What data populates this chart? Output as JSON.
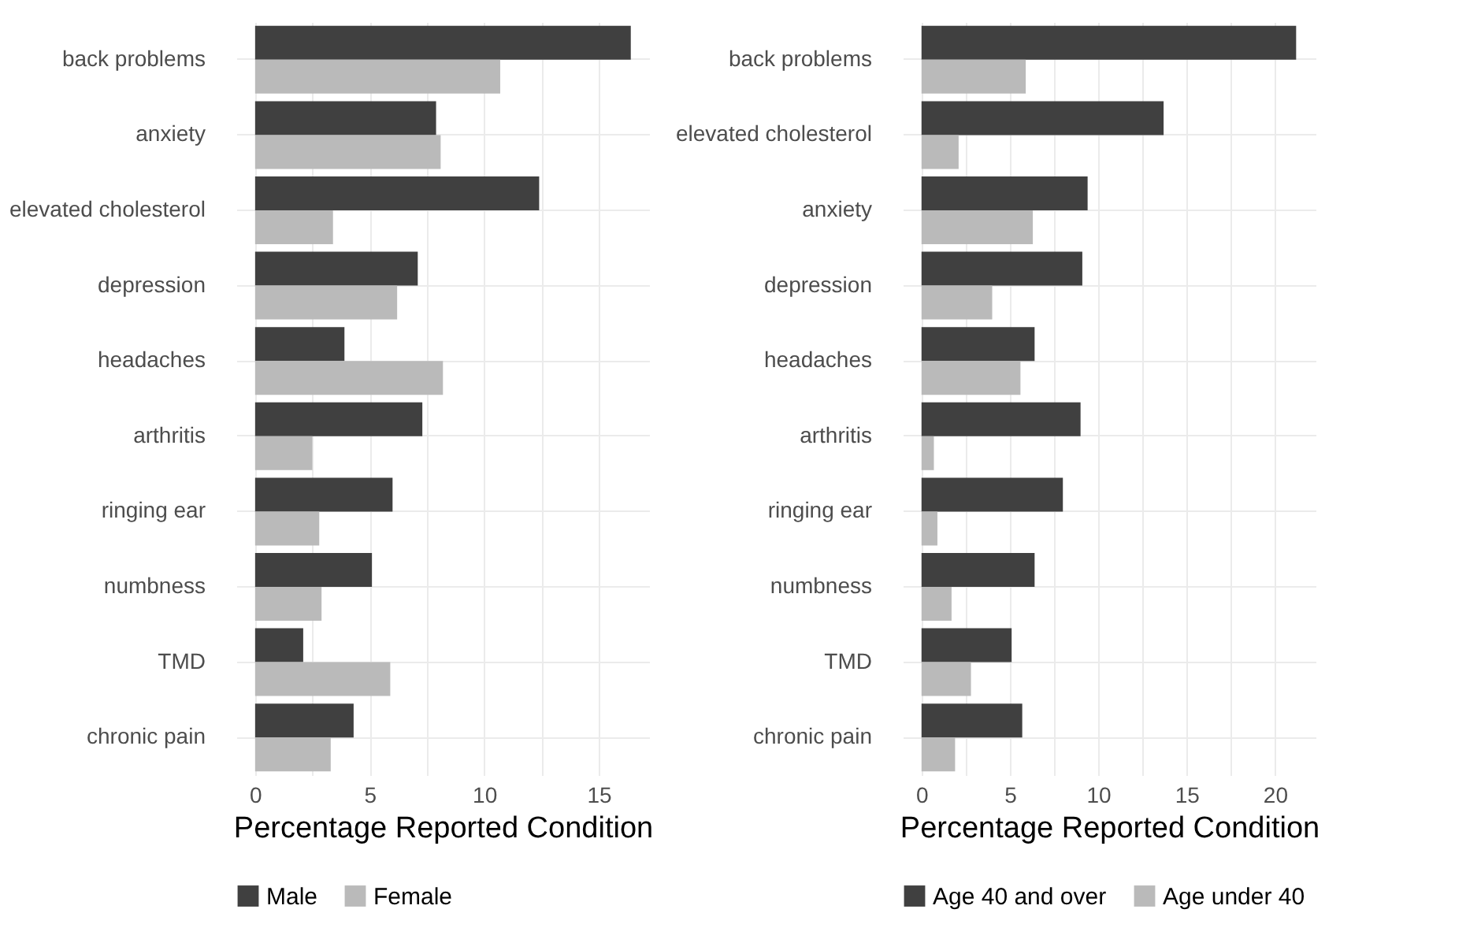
{
  "chart_data": [
    {
      "type": "bar",
      "orientation": "horizontal",
      "categories": [
        "back problems",
        "anxiety",
        "elevated cholesterol",
        "depression",
        "headaches",
        "arthritis",
        "ringing ear",
        "numbness",
        "TMD",
        "chronic pain"
      ],
      "series": [
        {
          "name": "Male",
          "color": "#404040",
          "values": [
            16.4,
            7.9,
            12.4,
            7.1,
            3.9,
            7.3,
            6.0,
            5.1,
            2.1,
            4.3
          ]
        },
        {
          "name": "Female",
          "color": "#bababa",
          "values": [
            10.7,
            8.1,
            3.4,
            6.2,
            8.2,
            2.5,
            2.8,
            2.9,
            5.9,
            3.3
          ]
        }
      ],
      "xlabel": "Percentage Reported Condition",
      "xlim": [
        -0.82,
        17.2
      ],
      "xticks": [
        0,
        {
          "value": 2.5,
          "label": null
        },
        5,
        {
          "value": 7.5,
          "label": null
        },
        10,
        {
          "value": 12.5,
          "label": null
        },
        15
      ],
      "grid": true,
      "legend": "bottom"
    },
    {
      "type": "bar",
      "orientation": "horizontal",
      "categories": [
        "back problems",
        "elevated cholesterol",
        "anxiety",
        "depression",
        "headaches",
        "arthritis",
        "ringing ear",
        "numbness",
        "TMD",
        "chronic pain"
      ],
      "series": [
        {
          "name": "Age 40 and over",
          "color": "#404040",
          "values": [
            21.2,
            13.7,
            9.4,
            9.1,
            6.4,
            9.0,
            8.0,
            6.4,
            5.1,
            5.7
          ]
        },
        {
          "name": "Age under 40",
          "color": "#bababa",
          "values": [
            5.9,
            2.1,
            6.3,
            4.0,
            5.6,
            0.7,
            0.9,
            1.7,
            2.8,
            1.9
          ]
        }
      ],
      "xlabel": "Percentage Reported Condition",
      "xlim": [
        -1.06,
        22.3
      ],
      "xticks": [
        0,
        {
          "value": 2.5,
          "label": null
        },
        5,
        {
          "value": 7.5,
          "label": null
        },
        10,
        {
          "value": 12.5,
          "label": null
        },
        15,
        {
          "value": 17.5,
          "label": null
        },
        20
      ],
      "grid": true,
      "legend": "bottom"
    }
  ]
}
